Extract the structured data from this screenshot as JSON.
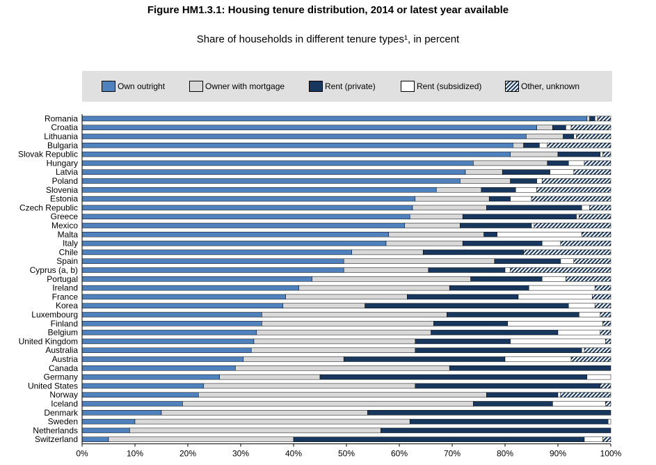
{
  "title": "Figure HM1.3.1: Housing tenure distribution, 2014 or latest year available",
  "subtitle": "Share of households in different tenure types¹, in percent",
  "colors": {
    "own_outright": "#4f81bd",
    "owner_mortgage": "#d9d9d9",
    "rent_private": "#17375e",
    "rent_subsidized": "#ffffff",
    "other_unknown": "hatched #17375e on #ffffff"
  },
  "chart_data": {
    "type": "bar",
    "orientation": "horizontal",
    "stacked": true,
    "title": "Figure HM1.3.1: Housing tenure distribution, 2014 or latest year available",
    "subtitle": "Share of households in different tenure types¹, in percent",
    "xlabel": "",
    "ylabel": "",
    "xlim": [
      0,
      100
    ],
    "x_ticks": [
      "0%",
      "10%",
      "20%",
      "30%",
      "40%",
      "50%",
      "60%",
      "70%",
      "80%",
      "90%",
      "100%"
    ],
    "grid": false,
    "legend_position": "top",
    "categories": [
      "Romania",
      "Croatia",
      "Lithuania",
      "Bulgaria",
      "Slovak Republic",
      "Hungary",
      "Latvia",
      "Poland",
      "Slovenia",
      "Estonia",
      "Czech Republic",
      "Greece",
      "Mexico",
      "Malta",
      "Italy",
      "Chile",
      "Spain",
      "Cyprus (a, b)",
      "Portugal",
      "Ireland",
      "France",
      "Korea",
      "Luxembourg",
      "Finland",
      "Belgium",
      "United Kingdom",
      "Australia",
      "Austria",
      "Canada",
      "Germany",
      "United States",
      "Norway",
      "Iceland",
      "Denmark",
      "Sweden",
      "Netherlands",
      "Switzerland"
    ],
    "series": [
      {
        "name": "Own outright",
        "values": [
          95.5,
          86,
          84,
          81.5,
          81,
          74,
          72.5,
          71.5,
          67,
          63,
          62.5,
          62,
          61,
          58,
          57.5,
          51,
          49.5,
          49.5,
          43.5,
          41,
          38.5,
          38,
          34,
          34,
          33,
          32.5,
          32,
          30.5,
          29,
          26,
          23,
          22,
          19,
          15,
          10,
          9,
          5
        ]
      },
      {
        "name": "Owner with mortgage",
        "values": [
          0.5,
          3,
          7,
          2,
          9,
          14,
          7,
          9.5,
          8.5,
          14,
          14,
          10,
          10.5,
          18,
          14.5,
          13.5,
          28.5,
          16,
          30,
          28.5,
          23,
          15.5,
          35,
          32.5,
          33,
          30.5,
          31,
          19,
          40.5,
          19,
          40,
          54.5,
          55,
          39,
          52,
          47.5,
          35
        ]
      },
      {
        "name": "Rent (private)",
        "values": [
          1,
          2.5,
          2,
          3,
          8,
          4,
          9,
          5,
          6.5,
          4,
          18,
          21.5,
          13.5,
          2.5,
          15,
          19,
          12.5,
          14.5,
          13.5,
          15,
          21,
          38.5,
          25,
          14,
          24,
          18,
          31.5,
          30.5,
          30.5,
          50.5,
          35,
          13.5,
          15,
          46,
          37.5,
          43.5,
          55
        ]
      },
      {
        "name": "Rent (subsidized)",
        "values": [
          0.5,
          1,
          0.5,
          1.5,
          0.5,
          3,
          4.5,
          1,
          4,
          4,
          1.5,
          0.5,
          0.5,
          16,
          3.5,
          0,
          2.5,
          1,
          4.5,
          12.5,
          14,
          5,
          4,
          18,
          8,
          18,
          0.5,
          12.5,
          0,
          4.5,
          0,
          0.5,
          10,
          0,
          0.5,
          0,
          3.5
        ]
      },
      {
        "name": "Other, unknown",
        "values": [
          2.5,
          7.5,
          6.5,
          12,
          1.5,
          5,
          7,
          13,
          14,
          15,
          4,
          6,
          14.5,
          5.5,
          9.5,
          16.5,
          7,
          19,
          8.5,
          3,
          3.5,
          3,
          2,
          1.5,
          2,
          1,
          5,
          7.5,
          0,
          0,
          2,
          9.5,
          1,
          0,
          0,
          0,
          1.5
        ]
      }
    ]
  }
}
